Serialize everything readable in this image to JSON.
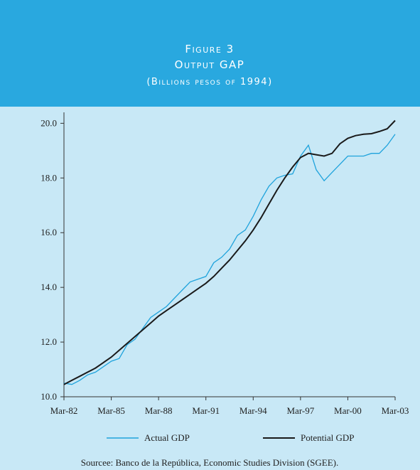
{
  "chart_data": {
    "type": "line",
    "title": "Figure 3",
    "subtitle": "Output GAP",
    "unit_note": "(Billions pesos of 1994)",
    "source": "Sourcee:  Banco de la República, Economic Studies Division (SGEE).",
    "categories": [
      "Mar-82",
      null,
      null,
      null,
      null,
      null,
      "Mar-85",
      null,
      null,
      null,
      null,
      null,
      "Mar-88",
      null,
      null,
      null,
      null,
      null,
      "Mar-91",
      null,
      null,
      null,
      null,
      null,
      "Mar-94",
      null,
      null,
      null,
      null,
      null,
      "Mar-97",
      null,
      null,
      null,
      null,
      null,
      "Mar-00",
      null,
      null,
      null,
      null,
      null,
      "Mar-03"
    ],
    "series": [
      {
        "name": "Actual GDP",
        "color": "#1fa3dc",
        "values": [
          10.5,
          10.45,
          10.6,
          10.8,
          10.9,
          11.1,
          11.3,
          11.4,
          11.9,
          12.1,
          12.5,
          12.9,
          13.1,
          13.3,
          13.6,
          13.9,
          14.2,
          14.3,
          14.4,
          14.9,
          15.1,
          15.4,
          15.9,
          16.1,
          16.6,
          17.2,
          17.7,
          18.0,
          18.1,
          18.15,
          18.8,
          19.2,
          18.3,
          17.9,
          18.2,
          18.5,
          18.8,
          18.8,
          18.8,
          18.9,
          18.9,
          19.2,
          19.6
        ]
      },
      {
        "name": "Potential GDP",
        "color": "#1a1a1a",
        "values": [
          10.45,
          10.6,
          10.75,
          10.9,
          11.05,
          11.25,
          11.45,
          11.7,
          11.95,
          12.2,
          12.45,
          12.7,
          12.95,
          13.15,
          13.35,
          13.55,
          13.75,
          13.95,
          14.15,
          14.4,
          14.7,
          15.0,
          15.35,
          15.7,
          16.1,
          16.55,
          17.05,
          17.55,
          18.0,
          18.4,
          18.75,
          18.9,
          18.85,
          18.8,
          18.9,
          19.25,
          19.45,
          19.55,
          19.6,
          19.62,
          19.7,
          19.8,
          20.1
        ]
      }
    ],
    "ylim": [
      10,
      20.4
    ],
    "yticks": [
      {
        "value": 10,
        "label": "10.0"
      },
      {
        "value": 12,
        "label": "12.0"
      },
      {
        "value": 14,
        "label": "14.0"
      },
      {
        "value": 16,
        "label": "16.0"
      },
      {
        "value": 18,
        "label": "18.0"
      },
      {
        "value": 20,
        "label": "20.0"
      }
    ],
    "legend": "bottom",
    "grid": false
  }
}
